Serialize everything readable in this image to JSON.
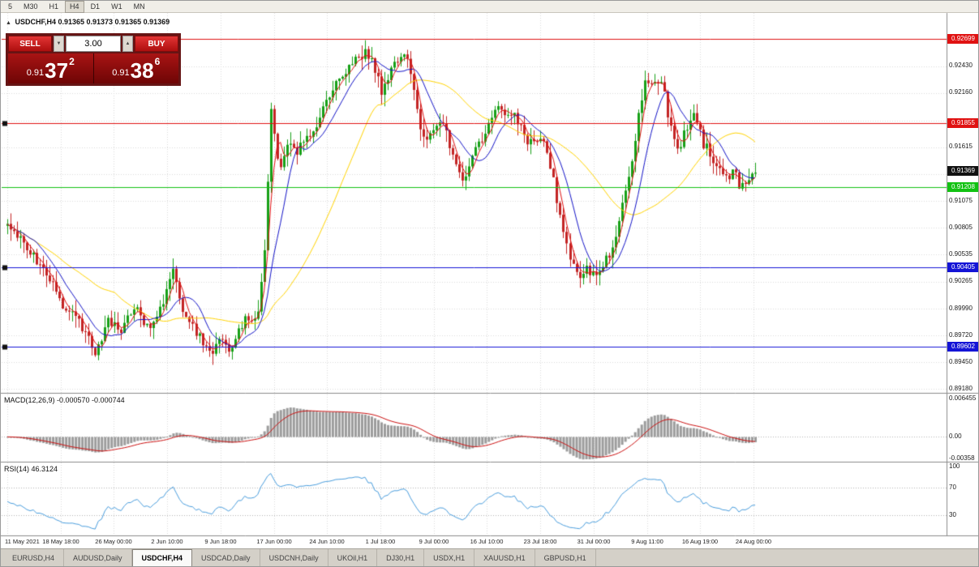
{
  "toolbar": {
    "timeframes": [
      "5",
      "M30",
      "H1",
      "H4",
      "D1",
      "W1",
      "MN"
    ],
    "active": "H4"
  },
  "chart": {
    "symbol_period": "USDCHF,H4",
    "quote_line": "0.91365 0.91373 0.91365 0.91369"
  },
  "trade_panel": {
    "sell_label": "SELL",
    "buy_label": "BUY",
    "volume": "3.00",
    "sell_price": {
      "big": "0.91",
      "main": "37",
      "sup": "2"
    },
    "buy_price": {
      "big": "0.91",
      "main": "38",
      "sup": "6"
    }
  },
  "tabs": {
    "items": [
      "EURUSD,H4",
      "AUDUSD,Daily",
      "USDCHF,H4",
      "USDCAD,Daily",
      "USDCNH,Daily",
      "UKOil,H1",
      "DJ30,H1",
      "USDX,H1",
      "XAUUSD,H1",
      "GBPUSD,H1"
    ],
    "active_index": 2
  },
  "chart_data": {
    "type": "candlestick",
    "symbol": "USDCHF",
    "timeframe": "H4",
    "current_quote": {
      "open": 0.91365,
      "high": 0.91373,
      "low": 0.91365,
      "close": 0.91369
    },
    "ylim": [
      0.8915,
      0.9296
    ],
    "y_tick_labels": [
      "0.92430",
      "0.92160",
      "0.91615",
      "0.91075",
      "0.90805",
      "0.90535",
      "0.90265",
      "0.89990",
      "0.89720",
      "0.89450",
      "0.89180"
    ],
    "x_tick_labels": [
      "11 May 2021",
      "18 May 18:00",
      "26 May 00:00",
      "2 Jun 10:00",
      "9 Jun 18:00",
      "17 Jun 00:00",
      "24 Jun 10:00",
      "1 Jul 18:00",
      "9 Jul 00:00",
      "16 Jul 10:00",
      "23 Jul 18:00",
      "31 Jul 00:00",
      "9 Aug 11:00",
      "16 Aug 19:00",
      "24 Aug 00:00"
    ],
    "grid": true,
    "horizontal_lines": [
      {
        "price": 0.92699,
        "color": "#e01212",
        "label": "0.92699",
        "handles": false,
        "badge_only": false
      },
      {
        "price": 0.91855,
        "color": "#e01212",
        "label": "0.91855",
        "handles": true,
        "badge_only": false
      },
      {
        "price": 0.91369,
        "color": "#111111",
        "label": "0.91369",
        "handles": false,
        "badge_only": true
      },
      {
        "price": 0.91208,
        "color": "#12c212",
        "label": "0.91208",
        "handles": false,
        "badge_only": false
      },
      {
        "price": 0.90405,
        "color": "#1414d6",
        "label": "0.90405",
        "handles": true,
        "badge_only": false
      },
      {
        "price": 0.89602,
        "color": "#1414d6",
        "label": "0.89602",
        "handles": true,
        "badge_only": false
      }
    ],
    "moving_averages": [
      {
        "period": 34,
        "color": "#ffd400"
      },
      {
        "period": 10,
        "color": "#1414c8"
      },
      {
        "period": 4,
        "color": "#e01010"
      }
    ],
    "indicators": {
      "macd": {
        "label": "MACD(12,26,9) -0.000570 -0.000744",
        "params": [
          12,
          26,
          9
        ],
        "display_values": [
          -0.00057,
          -0.000744
        ],
        "axis": [
          {
            "text": "0.006455",
            "value": 0.006455
          },
          {
            "text": "0.00",
            "value": 0
          },
          {
            "text": "-0.00358",
            "value": -0.00358
          }
        ],
        "axis_range": [
          -0.00405,
          0.00715
        ]
      },
      "rsi": {
        "label": "RSI(14) 46.3124",
        "period": 14,
        "value": 46.3124,
        "levels": [
          70,
          30
        ],
        "axis": [
          {
            "text": "100",
            "value": 100
          },
          {
            "text": "70",
            "value": 70
          },
          {
            "text": "30",
            "value": 30
          }
        ]
      }
    },
    "price_keypoints": [
      [
        0.0,
        0.9082
      ],
      [
        0.02,
        0.9068
      ],
      [
        0.04,
        0.9046
      ],
      [
        0.056,
        0.9032
      ],
      [
        0.075,
        0.9
      ],
      [
        0.095,
        0.8986
      ],
      [
        0.119,
        0.8952
      ],
      [
        0.135,
        0.8988
      ],
      [
        0.15,
        0.8976
      ],
      [
        0.17,
        0.9
      ],
      [
        0.19,
        0.8978
      ],
      [
        0.205,
        0.8998
      ],
      [
        0.222,
        0.904
      ],
      [
        0.235,
        0.8996
      ],
      [
        0.25,
        0.8978
      ],
      [
        0.268,
        0.8953
      ],
      [
        0.285,
        0.8968
      ],
      [
        0.298,
        0.8958
      ],
      [
        0.315,
        0.8986
      ],
      [
        0.336,
        0.8996
      ],
      [
        0.345,
        0.9075
      ],
      [
        0.352,
        0.9196
      ],
      [
        0.36,
        0.915
      ],
      [
        0.366,
        0.9138
      ],
      [
        0.375,
        0.9168
      ],
      [
        0.387,
        0.9156
      ],
      [
        0.4,
        0.9172
      ],
      [
        0.415,
        0.918
      ],
      [
        0.425,
        0.9206
      ],
      [
        0.445,
        0.9232
      ],
      [
        0.469,
        0.925
      ],
      [
        0.48,
        0.9258
      ],
      [
        0.49,
        0.9242
      ],
      [
        0.5,
        0.9216
      ],
      [
        0.52,
        0.925
      ],
      [
        0.534,
        0.9254
      ],
      [
        0.545,
        0.9216
      ],
      [
        0.555,
        0.9166
      ],
      [
        0.57,
        0.918
      ],
      [
        0.582,
        0.9188
      ],
      [
        0.595,
        0.915
      ],
      [
        0.61,
        0.9122
      ],
      [
        0.622,
        0.9155
      ],
      [
        0.631,
        0.9165
      ],
      [
        0.642,
        0.9178
      ],
      [
        0.653,
        0.9205
      ],
      [
        0.665,
        0.9192
      ],
      [
        0.675,
        0.9198
      ],
      [
        0.686,
        0.9185
      ],
      [
        0.696,
        0.9168
      ],
      [
        0.708,
        0.9172
      ],
      [
        0.718,
        0.9162
      ],
      [
        0.73,
        0.913
      ],
      [
        0.74,
        0.9086
      ],
      [
        0.75,
        0.9055
      ],
      [
        0.761,
        0.9032
      ],
      [
        0.775,
        0.904
      ],
      [
        0.788,
        0.9028
      ],
      [
        0.8,
        0.9048
      ],
      [
        0.81,
        0.9062
      ],
      [
        0.822,
        0.9105
      ],
      [
        0.837,
        0.916
      ],
      [
        0.846,
        0.9206
      ],
      [
        0.854,
        0.9232
      ],
      [
        0.865,
        0.9224
      ],
      [
        0.875,
        0.923
      ],
      [
        0.885,
        0.9185
      ],
      [
        0.897,
        0.916
      ],
      [
        0.908,
        0.918
      ],
      [
        0.919,
        0.9196
      ],
      [
        0.93,
        0.9165
      ],
      [
        0.94,
        0.9155
      ],
      [
        0.95,
        0.914
      ],
      [
        0.962,
        0.9128
      ],
      [
        0.972,
        0.9136
      ],
      [
        0.98,
        0.9118
      ],
      [
        0.99,
        0.913
      ],
      [
        1.0,
        0.9137
      ]
    ]
  }
}
